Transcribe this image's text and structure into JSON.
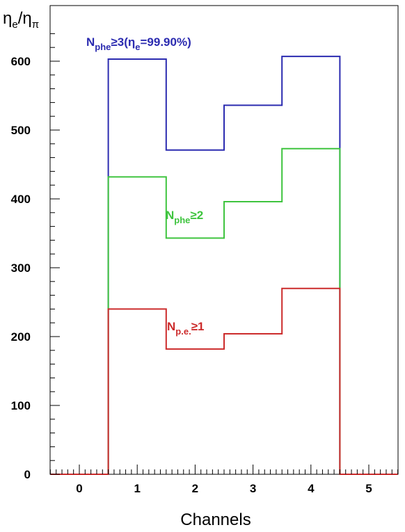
{
  "chart_data": {
    "type": "histogram",
    "title": "",
    "xlabel": "Channels",
    "ylabel": {
      "main": "η",
      "sub1": "e",
      "sep": "/η",
      "sub2": "π"
    },
    "xlim": [
      -0.5,
      5.5
    ],
    "ylim": [
      0,
      650
    ],
    "x_ticks": [
      0,
      1,
      2,
      3,
      4,
      5
    ],
    "y_ticks": [
      0,
      100,
      200,
      300,
      400,
      500,
      600
    ],
    "bin_edges": [
      -0.5,
      0.5,
      1.5,
      2.5,
      3.5,
      4.5,
      5.5
    ],
    "series": [
      {
        "color": "#2b2bb0",
        "values": [
          0,
          603,
          471,
          536,
          607,
          0
        ]
      },
      {
        "color": "#3ec43e",
        "values": [
          0,
          432,
          343,
          396,
          473,
          0
        ]
      },
      {
        "color": "#cc2b2b",
        "values": [
          0,
          240,
          182,
          204,
          270,
          0
        ]
      }
    ],
    "annotations": [
      {
        "color": "#2b2bb0",
        "main": "N",
        "sub": "phe",
        "rest": "≥3(η",
        "sub2": "e",
        "rest2": "=99.90%)"
      },
      {
        "color": "#3ec43e",
        "main": "N",
        "sub": "phe",
        "rest": "≥2"
      },
      {
        "color": "#cc2b2b",
        "main": "N",
        "sub": "p.e.",
        "rest": "≥1"
      }
    ]
  }
}
